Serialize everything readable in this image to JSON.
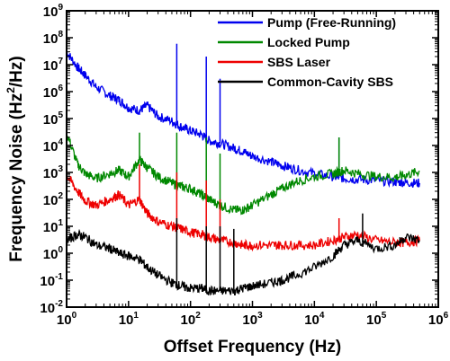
{
  "chart_data": {
    "type": "line",
    "title": "",
    "xlabel": "Offset Frequency (Hz)",
    "ylabel_main": "Frequency Noise (Hz",
    "ylabel_sup": "2",
    "ylabel_tail": "/Hz)",
    "x_scale": "log",
    "y_scale": "log",
    "xlim": [
      1,
      1000000
    ],
    "ylim": [
      0.01,
      1000000000
    ],
    "x_ticks": [
      {
        "base": "10",
        "exp": "0"
      },
      {
        "base": "10",
        "exp": "1"
      },
      {
        "base": "10",
        "exp": "2"
      },
      {
        "base": "10",
        "exp": "3"
      },
      {
        "base": "10",
        "exp": "4"
      },
      {
        "base": "10",
        "exp": "5"
      },
      {
        "base": "10",
        "exp": "6"
      }
    ],
    "y_ticks": [
      {
        "base": "10",
        "exp": "-2"
      },
      {
        "base": "10",
        "exp": "-1"
      },
      {
        "base": "10",
        "exp": "0"
      },
      {
        "base": "10",
        "exp": "1"
      },
      {
        "base": "10",
        "exp": "2"
      },
      {
        "base": "10",
        "exp": "3"
      },
      {
        "base": "10",
        "exp": "4"
      },
      {
        "base": "10",
        "exp": "5"
      },
      {
        "base": "10",
        "exp": "6"
      },
      {
        "base": "10",
        "exp": "7"
      },
      {
        "base": "10",
        "exp": "8"
      },
      {
        "base": "10",
        "exp": "9"
      }
    ],
    "grid": false,
    "legend_position": "top-right",
    "series": [
      {
        "name": "Pump (Free-Running)",
        "color": "#0000ee",
        "points": [
          [
            1,
            30000000
          ],
          [
            1.5,
            8000000
          ],
          [
            2,
            4000000
          ],
          [
            3,
            1500000
          ],
          [
            5,
            700000
          ],
          [
            7,
            500000
          ],
          [
            10,
            250000
          ],
          [
            15,
            200000
          ],
          [
            20,
            300000
          ],
          [
            30,
            120000
          ],
          [
            50,
            80000
          ],
          [
            70,
            50000
          ],
          [
            100,
            35000
          ],
          [
            150,
            25000
          ],
          [
            200,
            15000
          ],
          [
            300,
            12000
          ],
          [
            500,
            8000
          ],
          [
            700,
            6000
          ],
          [
            1000,
            4000
          ],
          [
            2000,
            2500
          ],
          [
            3000,
            1800
          ],
          [
            5000,
            1300
          ],
          [
            10000,
            900
          ],
          [
            20000,
            700
          ],
          [
            30000,
            600
          ],
          [
            50000,
            550
          ],
          [
            100000,
            500
          ],
          [
            200000,
            450
          ],
          [
            300000,
            420
          ],
          [
            500000,
            400
          ]
        ],
        "spikes": [
          [
            60,
            60000000
          ],
          [
            180,
            20000000
          ],
          [
            300,
            3000000
          ],
          [
            25000,
            20000
          ]
        ]
      },
      {
        "name": "Locked Pump",
        "color": "#008800",
        "points": [
          [
            1,
            30000
          ],
          [
            1.5,
            2000
          ],
          [
            2,
            900
          ],
          [
            3,
            600
          ],
          [
            5,
            900
          ],
          [
            7,
            1200
          ],
          [
            10,
            700
          ],
          [
            15,
            3000
          ],
          [
            20,
            1500
          ],
          [
            30,
            700
          ],
          [
            50,
            400
          ],
          [
            70,
            300
          ],
          [
            100,
            250
          ],
          [
            150,
            150
          ],
          [
            200,
            100
          ],
          [
            300,
            60
          ],
          [
            500,
            40
          ],
          [
            700,
            40
          ],
          [
            1000,
            60
          ],
          [
            2000,
            150
          ],
          [
            3000,
            250
          ],
          [
            5000,
            450
          ],
          [
            10000,
            700
          ],
          [
            20000,
            900
          ],
          [
            30000,
            1200
          ],
          [
            50000,
            900
          ],
          [
            100000,
            700
          ],
          [
            200000,
            650
          ],
          [
            300000,
            800
          ],
          [
            500000,
            1100
          ]
        ],
        "spikes": [
          [
            15,
            30000
          ],
          [
            60,
            30000
          ],
          [
            180,
            20000
          ],
          [
            300,
            5000
          ],
          [
            25000,
            20000
          ]
        ]
      },
      {
        "name": "SBS Laser",
        "color": "#ee0000",
        "points": [
          [
            1,
            800
          ],
          [
            1.5,
            200
          ],
          [
            2,
            90
          ],
          [
            3,
            60
          ],
          [
            5,
            100
          ],
          [
            7,
            150
          ],
          [
            10,
            60
          ],
          [
            15,
            100
          ],
          [
            20,
            30
          ],
          [
            30,
            15
          ],
          [
            50,
            10
          ],
          [
            70,
            8
          ],
          [
            100,
            6
          ],
          [
            150,
            5
          ],
          [
            200,
            4
          ],
          [
            300,
            3
          ],
          [
            500,
            2.5
          ],
          [
            700,
            2
          ],
          [
            1000,
            2
          ],
          [
            2000,
            2
          ],
          [
            3000,
            2
          ],
          [
            5000,
            2
          ],
          [
            10000,
            2
          ],
          [
            20000,
            3
          ],
          [
            30000,
            4
          ],
          [
            50000,
            5
          ],
          [
            100000,
            3
          ],
          [
            200000,
            2.5
          ],
          [
            300000,
            2.5
          ],
          [
            500000,
            3
          ]
        ],
        "spikes": [
          [
            15,
            2000
          ],
          [
            60,
            1000
          ],
          [
            180,
            500
          ],
          [
            300,
            100
          ],
          [
            25000,
            20
          ]
        ]
      },
      {
        "name": "Common-Cavity SBS",
        "color": "#000000",
        "points": [
          [
            1,
            3
          ],
          [
            1.5,
            5
          ],
          [
            2,
            4
          ],
          [
            3,
            2
          ],
          [
            5,
            1.5
          ],
          [
            7,
            1
          ],
          [
            10,
            0.8
          ],
          [
            15,
            0.6
          ],
          [
            20,
            0.3
          ],
          [
            30,
            0.15
          ],
          [
            50,
            0.08
          ],
          [
            70,
            0.06
          ],
          [
            100,
            0.05
          ],
          [
            150,
            0.05
          ],
          [
            200,
            0.04
          ],
          [
            300,
            0.04
          ],
          [
            500,
            0.04
          ],
          [
            700,
            0.05
          ],
          [
            1000,
            0.06
          ],
          [
            2000,
            0.08
          ],
          [
            3000,
            0.1
          ],
          [
            5000,
            0.15
          ],
          [
            10000,
            0.3
          ],
          [
            20000,
            0.8
          ],
          [
            30000,
            2
          ],
          [
            50000,
            3
          ],
          [
            100000,
            1.5
          ],
          [
            200000,
            2
          ],
          [
            300000,
            4
          ],
          [
            500000,
            3
          ]
        ],
        "spikes": [
          [
            60,
            20
          ],
          [
            180,
            10
          ],
          [
            300,
            10
          ],
          [
            500,
            8
          ],
          [
            60000,
            30
          ]
        ]
      }
    ]
  }
}
